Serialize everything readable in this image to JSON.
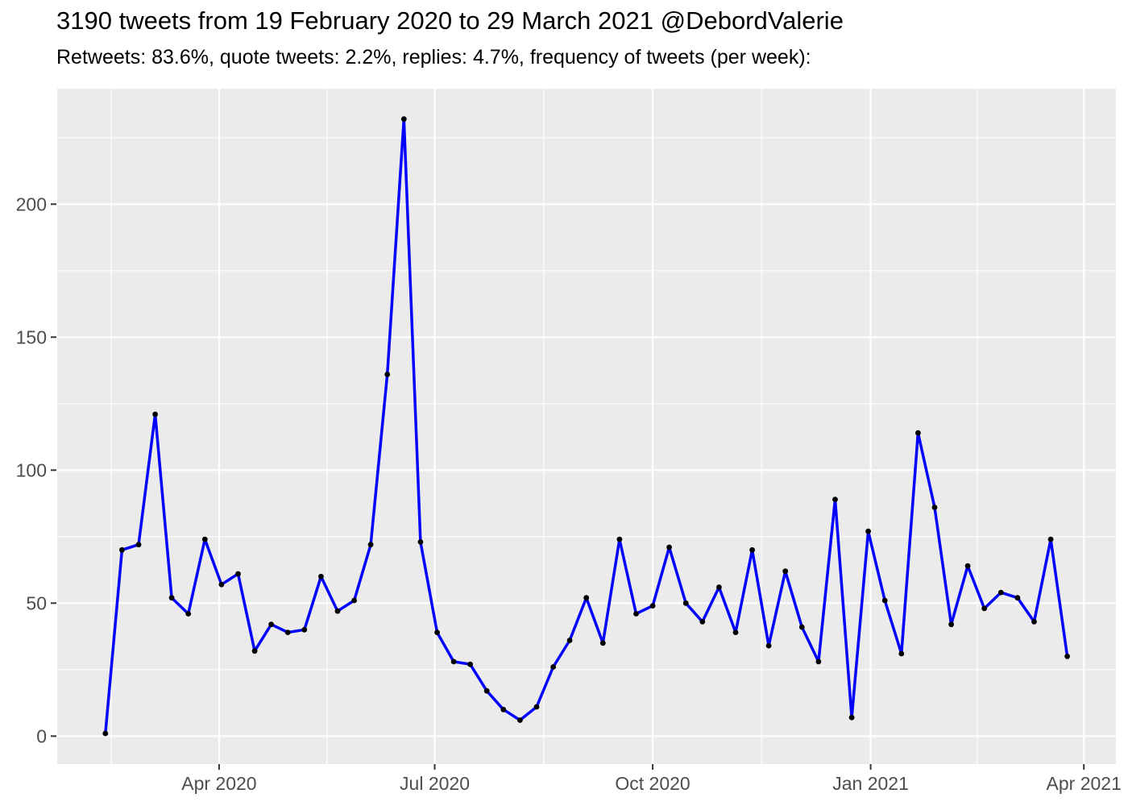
{
  "chart_data": {
    "type": "line",
    "title": "3190 tweets from 19 February 2020 to 29 March 2021 @DebordValerie",
    "subtitle": "Retweets: 83.6%, quote tweets: 2.2%, replies: 4.7%, frequency of tweets (per week):",
    "total_tweets": 3190,
    "x_unit": "week",
    "x": [
      "2020-02-13",
      "2020-02-20",
      "2020-02-27",
      "2020-03-05",
      "2020-03-12",
      "2020-03-19",
      "2020-03-26",
      "2020-04-02",
      "2020-04-09",
      "2020-04-16",
      "2020-04-23",
      "2020-04-30",
      "2020-05-07",
      "2020-05-14",
      "2020-05-21",
      "2020-05-28",
      "2020-06-04",
      "2020-06-11",
      "2020-06-18",
      "2020-06-25",
      "2020-07-02",
      "2020-07-09",
      "2020-07-16",
      "2020-07-23",
      "2020-07-30",
      "2020-08-06",
      "2020-08-13",
      "2020-08-20",
      "2020-08-27",
      "2020-09-03",
      "2020-09-10",
      "2020-09-17",
      "2020-09-24",
      "2020-10-01",
      "2020-10-08",
      "2020-10-15",
      "2020-10-22",
      "2020-10-29",
      "2020-11-05",
      "2020-11-12",
      "2020-11-19",
      "2020-11-26",
      "2020-12-03",
      "2020-12-10",
      "2020-12-17",
      "2020-12-24",
      "2020-12-31",
      "2021-01-07",
      "2021-01-14",
      "2021-01-21",
      "2021-01-28",
      "2021-02-04",
      "2021-02-11",
      "2021-02-18",
      "2021-02-25",
      "2021-03-04",
      "2021-03-11",
      "2021-03-18",
      "2021-03-25"
    ],
    "series": [
      {
        "name": "tweets per week",
        "color": "#0000FF",
        "marker_color": "#000000",
        "values": [
          1,
          70,
          72,
          121,
          52,
          46,
          74,
          57,
          61,
          32,
          42,
          39,
          40,
          60,
          47,
          51,
          72,
          136,
          232,
          73,
          39,
          28,
          27,
          17,
          10,
          6,
          11,
          26,
          36,
          52,
          35,
          74,
          46,
          49,
          71,
          50,
          43,
          56,
          39,
          70,
          34,
          62,
          41,
          28,
          89,
          7,
          77,
          51,
          31,
          114,
          86,
          42,
          64,
          48,
          54,
          52,
          43,
          74,
          30
        ]
      }
    ],
    "x_axis": {
      "ticks": [
        {
          "label": "Apr 2020",
          "date": "2020-04-01"
        },
        {
          "label": "Jul 2020",
          "date": "2020-07-01"
        },
        {
          "label": "Oct 2020",
          "date": "2020-10-01"
        },
        {
          "label": "Jan 2021",
          "date": "2021-01-01"
        },
        {
          "label": "Apr 2021",
          "date": "2021-04-01"
        }
      ]
    },
    "y_axis": {
      "ticks": [
        0,
        50,
        100,
        150,
        200
      ],
      "range": [
        0,
        232
      ]
    },
    "grid": "on",
    "legend": "none",
    "styles": {
      "panel_bg": "#EBEBEB",
      "grid_color": "#FFFFFF",
      "axis_text_color": "#4D4D4D",
      "tick_mark_color": "#333333",
      "title_color": "#000000"
    }
  }
}
